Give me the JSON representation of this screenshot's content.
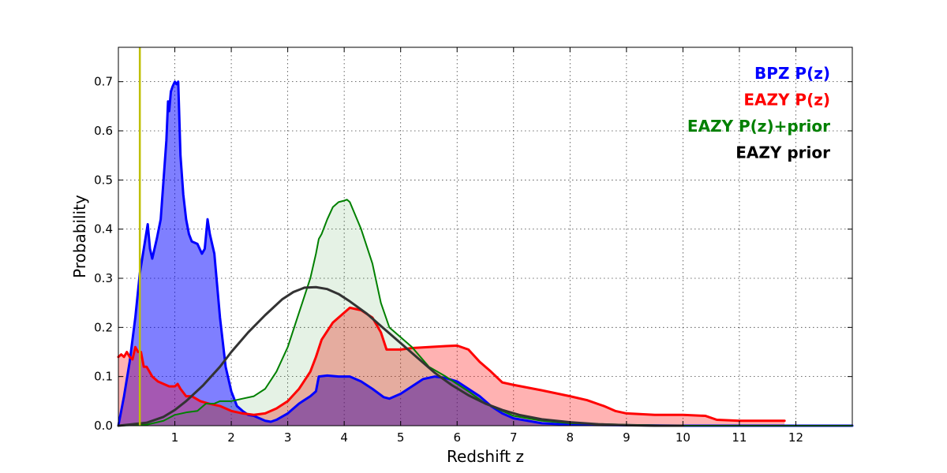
{
  "chart_data": {
    "type": "area",
    "title": "",
    "xlabel": "Redshift z",
    "ylabel": "Probability",
    "xlim": [
      0,
      13
    ],
    "ylim": [
      0,
      0.77
    ],
    "x_ticks": [
      1,
      2,
      3,
      4,
      5,
      6,
      7,
      8,
      9,
      10,
      11,
      12
    ],
    "y_ticks": [
      0.0,
      0.1,
      0.2,
      0.3,
      0.4,
      0.5,
      0.6,
      0.7
    ],
    "grid": true,
    "legend_position": "top-right",
    "reference_line": {
      "x": 0.38,
      "color": "#bfbf00"
    },
    "series": [
      {
        "name": "BPZ P(z)",
        "color": "#0000ff",
        "fill": "#0000ff",
        "fill_opacity": 0.5,
        "line_width": 3,
        "points": [
          [
            0,
            0.0
          ],
          [
            0.1,
            0.06
          ],
          [
            0.2,
            0.13
          ],
          [
            0.3,
            0.22
          ],
          [
            0.38,
            0.31
          ],
          [
            0.45,
            0.36
          ],
          [
            0.52,
            0.41
          ],
          [
            0.56,
            0.36
          ],
          [
            0.6,
            0.34
          ],
          [
            0.68,
            0.38
          ],
          [
            0.75,
            0.42
          ],
          [
            0.8,
            0.5
          ],
          [
            0.85,
            0.58
          ],
          [
            0.88,
            0.66
          ],
          [
            0.9,
            0.64
          ],
          [
            0.93,
            0.68
          ],
          [
            0.96,
            0.69
          ],
          [
            1.0,
            0.7
          ],
          [
            1.03,
            0.695
          ],
          [
            1.06,
            0.7
          ],
          [
            1.1,
            0.55
          ],
          [
            1.15,
            0.47
          ],
          [
            1.2,
            0.42
          ],
          [
            1.25,
            0.39
          ],
          [
            1.3,
            0.375
          ],
          [
            1.4,
            0.37
          ],
          [
            1.48,
            0.35
          ],
          [
            1.53,
            0.36
          ],
          [
            1.58,
            0.42
          ],
          [
            1.62,
            0.39
          ],
          [
            1.7,
            0.35
          ],
          [
            1.8,
            0.22
          ],
          [
            1.9,
            0.12
          ],
          [
            2.0,
            0.07
          ],
          [
            2.1,
            0.04
          ],
          [
            2.2,
            0.03
          ],
          [
            2.3,
            0.022
          ],
          [
            2.4,
            0.02
          ],
          [
            2.5,
            0.015
          ],
          [
            2.6,
            0.01
          ],
          [
            2.7,
            0.008
          ],
          [
            2.8,
            0.012
          ],
          [
            3.0,
            0.025
          ],
          [
            3.2,
            0.045
          ],
          [
            3.4,
            0.06
          ],
          [
            3.5,
            0.07
          ],
          [
            3.55,
            0.1
          ],
          [
            3.7,
            0.102
          ],
          [
            3.9,
            0.1
          ],
          [
            4.1,
            0.1
          ],
          [
            4.3,
            0.09
          ],
          [
            4.5,
            0.075
          ],
          [
            4.7,
            0.058
          ],
          [
            4.8,
            0.055
          ],
          [
            5.0,
            0.065
          ],
          [
            5.2,
            0.08
          ],
          [
            5.4,
            0.095
          ],
          [
            5.6,
            0.1
          ],
          [
            5.8,
            0.097
          ],
          [
            6.0,
            0.09
          ],
          [
            6.2,
            0.075
          ],
          [
            6.4,
            0.06
          ],
          [
            6.6,
            0.04
          ],
          [
            6.8,
            0.025
          ],
          [
            7.0,
            0.015
          ],
          [
            7.5,
            0.005
          ],
          [
            8.0,
            0.002
          ],
          [
            9.0,
            0.001
          ],
          [
            10.0,
            0.0
          ],
          [
            13.0,
            0.0
          ]
        ]
      },
      {
        "name": "EAZY P(z)",
        "color": "#ff0000",
        "fill": "#ff0000",
        "fill_opacity": 0.3,
        "line_width": 3,
        "points": [
          [
            0,
            0.14
          ],
          [
            0.05,
            0.145
          ],
          [
            0.1,
            0.14
          ],
          [
            0.15,
            0.15
          ],
          [
            0.2,
            0.14
          ],
          [
            0.25,
            0.135
          ],
          [
            0.3,
            0.16
          ],
          [
            0.35,
            0.15
          ],
          [
            0.4,
            0.15
          ],
          [
            0.45,
            0.12
          ],
          [
            0.5,
            0.12
          ],
          [
            0.55,
            0.11
          ],
          [
            0.6,
            0.1
          ],
          [
            0.7,
            0.09
          ],
          [
            0.8,
            0.085
          ],
          [
            0.9,
            0.08
          ],
          [
            1.0,
            0.08
          ],
          [
            1.05,
            0.085
          ],
          [
            1.1,
            0.075
          ],
          [
            1.2,
            0.06
          ],
          [
            1.3,
            0.06
          ],
          [
            1.45,
            0.05
          ],
          [
            1.6,
            0.045
          ],
          [
            1.8,
            0.04
          ],
          [
            2.0,
            0.03
          ],
          [
            2.2,
            0.025
          ],
          [
            2.4,
            0.022
          ],
          [
            2.6,
            0.025
          ],
          [
            2.8,
            0.035
          ],
          [
            3.0,
            0.05
          ],
          [
            3.2,
            0.075
          ],
          [
            3.4,
            0.11
          ],
          [
            3.5,
            0.14
          ],
          [
            3.6,
            0.175
          ],
          [
            3.8,
            0.21
          ],
          [
            4.0,
            0.23
          ],
          [
            4.1,
            0.24
          ],
          [
            4.3,
            0.235
          ],
          [
            4.5,
            0.22
          ],
          [
            4.65,
            0.19
          ],
          [
            4.75,
            0.155
          ],
          [
            5.0,
            0.155
          ],
          [
            5.2,
            0.158
          ],
          [
            5.5,
            0.16
          ],
          [
            5.8,
            0.162
          ],
          [
            6.0,
            0.163
          ],
          [
            6.2,
            0.155
          ],
          [
            6.4,
            0.13
          ],
          [
            6.6,
            0.11
          ],
          [
            6.8,
            0.088
          ],
          [
            7.0,
            0.083
          ],
          [
            7.5,
            0.072
          ],
          [
            8.0,
            0.06
          ],
          [
            8.3,
            0.052
          ],
          [
            8.6,
            0.04
          ],
          [
            8.8,
            0.03
          ],
          [
            9.0,
            0.025
          ],
          [
            9.5,
            0.022
          ],
          [
            10.0,
            0.022
          ],
          [
            10.4,
            0.02
          ],
          [
            10.6,
            0.012
          ],
          [
            11.0,
            0.01
          ],
          [
            11.5,
            0.01
          ],
          [
            11.8,
            0.01
          ]
        ]
      },
      {
        "name": "EAZY P(z)+prior",
        "color": "#008000",
        "fill": "#008000",
        "fill_opacity": 0.1,
        "line_width": 2,
        "points": [
          [
            0,
            0.0
          ],
          [
            0.5,
            0.002
          ],
          [
            0.8,
            0.01
          ],
          [
            1.0,
            0.022
          ],
          [
            1.2,
            0.027
          ],
          [
            1.4,
            0.03
          ],
          [
            1.55,
            0.045
          ],
          [
            1.7,
            0.045
          ],
          [
            1.8,
            0.05
          ],
          [
            2.0,
            0.05
          ],
          [
            2.2,
            0.055
          ],
          [
            2.4,
            0.06
          ],
          [
            2.6,
            0.075
          ],
          [
            2.8,
            0.11
          ],
          [
            3.0,
            0.16
          ],
          [
            3.2,
            0.23
          ],
          [
            3.4,
            0.3
          ],
          [
            3.5,
            0.35
          ],
          [
            3.55,
            0.38
          ],
          [
            3.6,
            0.39
          ],
          [
            3.7,
            0.42
          ],
          [
            3.8,
            0.445
          ],
          [
            3.9,
            0.455
          ],
          [
            4.0,
            0.458
          ],
          [
            4.05,
            0.46
          ],
          [
            4.1,
            0.455
          ],
          [
            4.3,
            0.4
          ],
          [
            4.5,
            0.33
          ],
          [
            4.65,
            0.25
          ],
          [
            4.8,
            0.2
          ],
          [
            5.0,
            0.18
          ],
          [
            5.2,
            0.16
          ],
          [
            5.5,
            0.12
          ],
          [
            5.8,
            0.1
          ],
          [
            6.0,
            0.085
          ],
          [
            6.2,
            0.07
          ],
          [
            6.5,
            0.045
          ],
          [
            6.8,
            0.03
          ],
          [
            7.0,
            0.02
          ],
          [
            7.5,
            0.01
          ],
          [
            8.0,
            0.005
          ],
          [
            9.0,
            0.002
          ],
          [
            10.0,
            0.0
          ],
          [
            13.0,
            0.0
          ]
        ]
      },
      {
        "name": "EAZY prior",
        "color": "#333333",
        "fill": "none",
        "fill_opacity": 0,
        "line_width": 3,
        "points": [
          [
            0,
            0.0
          ],
          [
            0.5,
            0.006
          ],
          [
            0.8,
            0.018
          ],
          [
            1.0,
            0.032
          ],
          [
            1.2,
            0.05
          ],
          [
            1.5,
            0.082
          ],
          [
            1.8,
            0.12
          ],
          [
            2.0,
            0.15
          ],
          [
            2.3,
            0.19
          ],
          [
            2.6,
            0.225
          ],
          [
            2.9,
            0.257
          ],
          [
            3.1,
            0.272
          ],
          [
            3.3,
            0.281
          ],
          [
            3.5,
            0.282
          ],
          [
            3.7,
            0.278
          ],
          [
            3.9,
            0.268
          ],
          [
            4.1,
            0.253
          ],
          [
            4.4,
            0.228
          ],
          [
            4.7,
            0.198
          ],
          [
            5.0,
            0.168
          ],
          [
            5.3,
            0.138
          ],
          [
            5.6,
            0.108
          ],
          [
            5.9,
            0.083
          ],
          [
            6.2,
            0.062
          ],
          [
            6.5,
            0.045
          ],
          [
            6.8,
            0.032
          ],
          [
            7.1,
            0.022
          ],
          [
            7.5,
            0.013
          ],
          [
            8.0,
            0.007
          ],
          [
            8.5,
            0.003
          ],
          [
            9.0,
            0.001
          ],
          [
            9.5,
            0.0
          ],
          [
            10.0,
            0.0
          ]
        ]
      }
    ]
  }
}
